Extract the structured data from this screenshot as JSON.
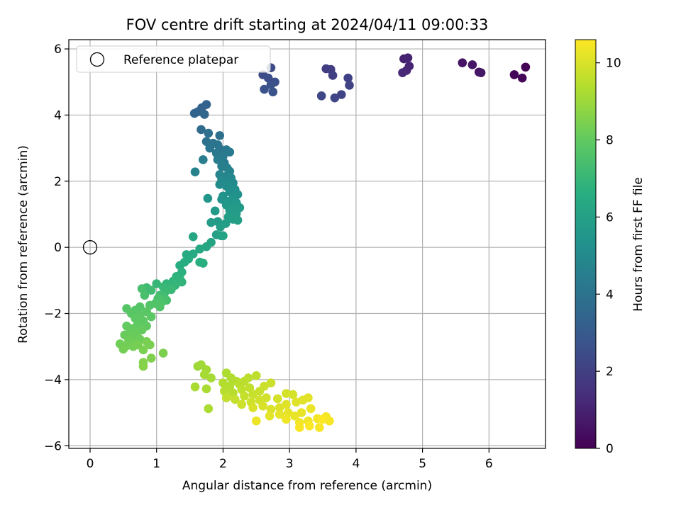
{
  "chart_data": {
    "type": "scatter",
    "title": "FOV centre drift starting at 2024/04/11 09:00:33",
    "xlabel": "Angular distance from reference (arcmin)",
    "ylabel": "Rotation from reference (arcmin)",
    "xlim": [
      -0.32,
      6.85
    ],
    "ylim": [
      -6.08,
      6.28
    ],
    "xticks": [
      0,
      1,
      2,
      3,
      4,
      5,
      6
    ],
    "yticks": [
      -6,
      -4,
      -2,
      0,
      2,
      4,
      6
    ],
    "grid": true,
    "legend": {
      "placement": "top-left",
      "entries": [
        "Reference platepar"
      ]
    },
    "reference_point": {
      "x": 0,
      "y": 0
    },
    "colorbar": {
      "label": "Hours from first FF file",
      "colormap": "viridis",
      "range": [
        0,
        10.6
      ],
      "ticks": [
        0,
        2,
        4,
        6,
        8,
        10
      ]
    },
    "points": [
      {
        "x": 6.55,
        "y": 5.45,
        "c": 0.05
      },
      {
        "x": 6.38,
        "y": 5.22,
        "c": 0.1
      },
      {
        "x": 6.5,
        "y": 5.12,
        "c": 0.15
      },
      {
        "x": 5.85,
        "y": 5.3,
        "c": 0.5
      },
      {
        "x": 5.6,
        "y": 5.58,
        "c": 0.55
      },
      {
        "x": 5.75,
        "y": 5.52,
        "c": 0.6
      },
      {
        "x": 5.88,
        "y": 5.28,
        "c": 0.65
      },
      {
        "x": 4.72,
        "y": 5.7,
        "c": 1.0
      },
      {
        "x": 4.78,
        "y": 5.73,
        "c": 1.05
      },
      {
        "x": 4.8,
        "y": 5.48,
        "c": 1.1
      },
      {
        "x": 4.76,
        "y": 5.35,
        "c": 1.15
      },
      {
        "x": 4.7,
        "y": 5.28,
        "c": 1.2
      },
      {
        "x": 3.55,
        "y": 5.4,
        "c": 1.9
      },
      {
        "x": 3.62,
        "y": 5.38,
        "c": 1.95
      },
      {
        "x": 3.65,
        "y": 5.2,
        "c": 2.0
      },
      {
        "x": 3.88,
        "y": 5.12,
        "c": 2.05
      },
      {
        "x": 3.9,
        "y": 4.9,
        "c": 2.1
      },
      {
        "x": 3.78,
        "y": 4.62,
        "c": 2.15
      },
      {
        "x": 3.68,
        "y": 4.52,
        "c": 2.2
      },
      {
        "x": 3.48,
        "y": 4.58,
        "c": 2.25
      },
      {
        "x": 2.72,
        "y": 5.43,
        "c": 2.4
      },
      {
        "x": 2.6,
        "y": 5.22,
        "c": 2.45
      },
      {
        "x": 2.68,
        "y": 5.12,
        "c": 2.5
      },
      {
        "x": 2.78,
        "y": 5.0,
        "c": 2.55
      },
      {
        "x": 2.72,
        "y": 4.92,
        "c": 2.6
      },
      {
        "x": 2.62,
        "y": 4.78,
        "c": 2.65
      },
      {
        "x": 2.75,
        "y": 4.7,
        "c": 2.7
      },
      {
        "x": 1.75,
        "y": 4.32,
        "c": 3.3
      },
      {
        "x": 1.68,
        "y": 4.22,
        "c": 3.35
      },
      {
        "x": 1.62,
        "y": 4.1,
        "c": 3.4
      },
      {
        "x": 1.57,
        "y": 4.05,
        "c": 3.45
      },
      {
        "x": 1.72,
        "y": 4.02,
        "c": 3.5
      },
      {
        "x": 1.67,
        "y": 3.56,
        "c": 3.7
      },
      {
        "x": 1.78,
        "y": 3.45,
        "c": 3.8
      },
      {
        "x": 1.95,
        "y": 3.38,
        "c": 3.9
      },
      {
        "x": 1.75,
        "y": 3.2,
        "c": 3.95
      },
      {
        "x": 1.85,
        "y": 3.15,
        "c": 4.0
      },
      {
        "x": 1.92,
        "y": 3.1,
        "c": 4.05
      },
      {
        "x": 1.8,
        "y": 3.0,
        "c": 4.1
      },
      {
        "x": 1.95,
        "y": 2.98,
        "c": 4.15
      },
      {
        "x": 2.05,
        "y": 2.95,
        "c": 4.2
      },
      {
        "x": 1.9,
        "y": 2.85,
        "c": 4.25
      },
      {
        "x": 2.1,
        "y": 2.88,
        "c": 4.3
      },
      {
        "x": 2.0,
        "y": 2.75,
        "c": 4.35
      },
      {
        "x": 1.92,
        "y": 2.65,
        "c": 4.4
      },
      {
        "x": 2.02,
        "y": 2.55,
        "c": 4.45
      },
      {
        "x": 1.7,
        "y": 2.65,
        "c": 4.5
      },
      {
        "x": 1.98,
        "y": 2.45,
        "c": 4.55
      },
      {
        "x": 2.06,
        "y": 2.4,
        "c": 4.6
      },
      {
        "x": 1.58,
        "y": 2.28,
        "c": 4.65
      },
      {
        "x": 2.1,
        "y": 2.3,
        "c": 4.7
      },
      {
        "x": 1.95,
        "y": 2.2,
        "c": 4.75
      },
      {
        "x": 2.05,
        "y": 2.15,
        "c": 4.8
      },
      {
        "x": 2.12,
        "y": 2.1,
        "c": 4.85
      },
      {
        "x": 1.98,
        "y": 2.05,
        "c": 4.9
      },
      {
        "x": 2.08,
        "y": 2.0,
        "c": 4.95
      },
      {
        "x": 2.15,
        "y": 1.95,
        "c": 5.0
      },
      {
        "x": 1.95,
        "y": 1.9,
        "c": 5.05
      },
      {
        "x": 2.05,
        "y": 1.85,
        "c": 5.1
      },
      {
        "x": 2.12,
        "y": 1.8,
        "c": 5.15
      },
      {
        "x": 2.18,
        "y": 1.75,
        "c": 5.2
      },
      {
        "x": 2.1,
        "y": 1.68,
        "c": 5.25
      },
      {
        "x": 2.22,
        "y": 1.6,
        "c": 5.3
      },
      {
        "x": 2.0,
        "y": 1.55,
        "c": 5.35
      },
      {
        "x": 2.15,
        "y": 1.48,
        "c": 5.4
      },
      {
        "x": 1.98,
        "y": 1.45,
        "c": 5.45
      },
      {
        "x": 2.1,
        "y": 1.4,
        "c": 5.5
      },
      {
        "x": 2.2,
        "y": 1.35,
        "c": 5.55
      },
      {
        "x": 2.05,
        "y": 1.28,
        "c": 5.6
      },
      {
        "x": 2.16,
        "y": 1.22,
        "c": 5.65
      },
      {
        "x": 2.25,
        "y": 1.2,
        "c": 5.7
      },
      {
        "x": 2.1,
        "y": 1.12,
        "c": 5.75
      },
      {
        "x": 2.2,
        "y": 1.02,
        "c": 5.8
      },
      {
        "x": 2.08,
        "y": 0.92,
        "c": 5.85
      },
      {
        "x": 2.15,
        "y": 0.85,
        "c": 5.9
      },
      {
        "x": 2.22,
        "y": 0.82,
        "c": 5.95
      },
      {
        "x": 1.77,
        "y": 1.48,
        "c": 5.55
      },
      {
        "x": 1.88,
        "y": 1.1,
        "c": 5.7
      },
      {
        "x": 1.92,
        "y": 0.78,
        "c": 5.75
      },
      {
        "x": 1.82,
        "y": 0.75,
        "c": 5.8
      },
      {
        "x": 1.96,
        "y": 0.62,
        "c": 5.85
      },
      {
        "x": 2.04,
        "y": 0.72,
        "c": 5.9
      },
      {
        "x": 1.9,
        "y": 0.38,
        "c": 6.0
      },
      {
        "x": 1.97,
        "y": 0.35,
        "c": 6.05
      },
      {
        "x": 2.0,
        "y": 0.35,
        "c": 6.1
      },
      {
        "x": 1.82,
        "y": 0.15,
        "c": 6.15
      },
      {
        "x": 1.75,
        "y": 0.02,
        "c": 6.2
      },
      {
        "x": 1.55,
        "y": 0.32,
        "c": 6.25
      },
      {
        "x": 1.65,
        "y": -0.05,
        "c": 6.3
      },
      {
        "x": 1.55,
        "y": -0.2,
        "c": 6.4
      },
      {
        "x": 1.45,
        "y": -0.22,
        "c": 6.45
      },
      {
        "x": 1.48,
        "y": -0.35,
        "c": 6.5
      },
      {
        "x": 1.42,
        "y": -0.45,
        "c": 6.55
      },
      {
        "x": 1.35,
        "y": -0.55,
        "c": 6.6
      },
      {
        "x": 1.65,
        "y": -0.45,
        "c": 6.62
      },
      {
        "x": 1.7,
        "y": -0.48,
        "c": 6.65
      },
      {
        "x": 1.38,
        "y": -0.75,
        "c": 6.7
      },
      {
        "x": 1.3,
        "y": -0.88,
        "c": 6.75
      },
      {
        "x": 1.35,
        "y": -0.95,
        "c": 6.8
      },
      {
        "x": 1.25,
        "y": -1.02,
        "c": 6.85
      },
      {
        "x": 1.38,
        "y": -1.05,
        "c": 6.88
      },
      {
        "x": 1.15,
        "y": -1.1,
        "c": 6.9
      },
      {
        "x": 1.28,
        "y": -1.15,
        "c": 6.95
      },
      {
        "x": 1.0,
        "y": -1.1,
        "c": 7.0
      },
      {
        "x": 1.1,
        "y": -1.2,
        "c": 7.05
      },
      {
        "x": 1.22,
        "y": -1.28,
        "c": 7.1
      },
      {
        "x": 1.12,
        "y": -1.38,
        "c": 7.15
      },
      {
        "x": 0.85,
        "y": -1.22,
        "c": 7.2
      },
      {
        "x": 0.92,
        "y": -1.3,
        "c": 7.25
      },
      {
        "x": 1.05,
        "y": -1.45,
        "c": 7.3
      },
      {
        "x": 1.1,
        "y": -1.5,
        "c": 7.35
      },
      {
        "x": 1.15,
        "y": -1.6,
        "c": 7.4
      },
      {
        "x": 0.78,
        "y": -1.25,
        "c": 7.42
      },
      {
        "x": 0.82,
        "y": -1.45,
        "c": 7.45
      },
      {
        "x": 1.02,
        "y": -1.55,
        "c": 7.5
      },
      {
        "x": 1.08,
        "y": -1.65,
        "c": 7.55
      },
      {
        "x": 0.98,
        "y": -1.7,
        "c": 7.6
      },
      {
        "x": 1.05,
        "y": -1.8,
        "c": 7.65
      },
      {
        "x": 0.9,
        "y": -1.75,
        "c": 7.7
      },
      {
        "x": 0.75,
        "y": -1.8,
        "c": 7.72
      },
      {
        "x": 0.55,
        "y": -1.85,
        "c": 7.75
      },
      {
        "x": 0.68,
        "y": -1.9,
        "c": 7.78
      },
      {
        "x": 0.85,
        "y": -1.95,
        "c": 7.8
      },
      {
        "x": 0.62,
        "y": -2.0,
        "c": 7.82
      },
      {
        "x": 0.75,
        "y": -2.05,
        "c": 7.85
      },
      {
        "x": 0.92,
        "y": -2.1,
        "c": 7.88
      },
      {
        "x": 0.68,
        "y": -2.15,
        "c": 7.9
      },
      {
        "x": 0.8,
        "y": -2.22,
        "c": 7.92
      },
      {
        "x": 0.72,
        "y": -2.3,
        "c": 7.95
      },
      {
        "x": 0.85,
        "y": -2.38,
        "c": 7.98
      },
      {
        "x": 0.55,
        "y": -2.38,
        "c": 8.0
      },
      {
        "x": 0.65,
        "y": -2.45,
        "c": 8.02
      },
      {
        "x": 0.78,
        "y": -2.5,
        "c": 8.05
      },
      {
        "x": 0.6,
        "y": -2.58,
        "c": 8.08
      },
      {
        "x": 0.7,
        "y": -2.62,
        "c": 8.1
      },
      {
        "x": 0.52,
        "y": -2.65,
        "c": 8.12
      },
      {
        "x": 0.62,
        "y": -2.72,
        "c": 8.15
      },
      {
        "x": 0.75,
        "y": -2.78,
        "c": 8.18
      },
      {
        "x": 0.58,
        "y": -2.82,
        "c": 8.2
      },
      {
        "x": 0.68,
        "y": -2.88,
        "c": 8.22
      },
      {
        "x": 0.45,
        "y": -2.92,
        "c": 8.25
      },
      {
        "x": 0.55,
        "y": -2.98,
        "c": 8.28
      },
      {
        "x": 0.65,
        "y": -3.0,
        "c": 8.3
      },
      {
        "x": 0.5,
        "y": -3.08,
        "c": 8.32
      },
      {
        "x": 0.72,
        "y": -2.95,
        "c": 8.35
      },
      {
        "x": 0.85,
        "y": -2.85,
        "c": 8.38
      },
      {
        "x": 0.9,
        "y": -2.95,
        "c": 8.4
      },
      {
        "x": 0.8,
        "y": -3.1,
        "c": 8.42
      },
      {
        "x": 1.1,
        "y": -3.2,
        "c": 8.45
      },
      {
        "x": 0.92,
        "y": -3.35,
        "c": 8.5
      },
      {
        "x": 0.8,
        "y": -3.48,
        "c": 8.55
      },
      {
        "x": 0.8,
        "y": -3.6,
        "c": 8.6
      },
      {
        "x": 1.62,
        "y": -3.6,
        "c": 9.0
      },
      {
        "x": 1.67,
        "y": -3.55,
        "c": 9.05
      },
      {
        "x": 1.75,
        "y": -3.7,
        "c": 9.1
      },
      {
        "x": 1.82,
        "y": -3.95,
        "c": 9.15
      },
      {
        "x": 1.72,
        "y": -3.85,
        "c": 9.18
      },
      {
        "x": 1.58,
        "y": -4.22,
        "c": 9.2
      },
      {
        "x": 1.75,
        "y": -4.28,
        "c": 9.22
      },
      {
        "x": 1.78,
        "y": -4.88,
        "c": 9.25
      },
      {
        "x": 2.05,
        "y": -3.8,
        "c": 9.3
      },
      {
        "x": 2.12,
        "y": -3.95,
        "c": 9.32
      },
      {
        "x": 2.0,
        "y": -4.1,
        "c": 9.35
      },
      {
        "x": 2.1,
        "y": -4.2,
        "c": 9.38
      },
      {
        "x": 2.2,
        "y": -4.05,
        "c": 9.4
      },
      {
        "x": 2.02,
        "y": -4.35,
        "c": 9.42
      },
      {
        "x": 2.15,
        "y": -4.4,
        "c": 9.45
      },
      {
        "x": 2.25,
        "y": -4.15,
        "c": 9.48
      },
      {
        "x": 2.32,
        "y": -4.05,
        "c": 9.5
      },
      {
        "x": 2.38,
        "y": -3.95,
        "c": 9.52
      },
      {
        "x": 2.5,
        "y": -3.88,
        "c": 9.55
      },
      {
        "x": 2.28,
        "y": -4.3,
        "c": 9.58
      },
      {
        "x": 2.4,
        "y": -4.25,
        "c": 9.6
      },
      {
        "x": 2.05,
        "y": -4.55,
        "c": 9.62
      },
      {
        "x": 2.18,
        "y": -4.6,
        "c": 9.65
      },
      {
        "x": 2.32,
        "y": -4.5,
        "c": 9.68
      },
      {
        "x": 2.45,
        "y": -4.45,
        "c": 9.7
      },
      {
        "x": 2.55,
        "y": -4.35,
        "c": 9.72
      },
      {
        "x": 2.62,
        "y": -4.2,
        "c": 9.75
      },
      {
        "x": 2.72,
        "y": -4.1,
        "c": 9.78
      },
      {
        "x": 2.28,
        "y": -4.75,
        "c": 9.8
      },
      {
        "x": 2.42,
        "y": -4.68,
        "c": 9.82
      },
      {
        "x": 2.55,
        "y": -4.62,
        "c": 9.85
      },
      {
        "x": 2.65,
        "y": -4.55,
        "c": 9.88
      },
      {
        "x": 2.82,
        "y": -4.58,
        "c": 9.9
      },
      {
        "x": 2.95,
        "y": -4.42,
        "c": 9.92
      },
      {
        "x": 3.05,
        "y": -4.45,
        "c": 9.95
      },
      {
        "x": 2.45,
        "y": -4.85,
        "c": 9.98
      },
      {
        "x": 2.6,
        "y": -4.8,
        "c": 10.0
      },
      {
        "x": 2.72,
        "y": -4.9,
        "c": 10.02
      },
      {
        "x": 2.85,
        "y": -4.85,
        "c": 10.05
      },
      {
        "x": 2.95,
        "y": -4.75,
        "c": 10.08
      },
      {
        "x": 3.1,
        "y": -4.68,
        "c": 10.1
      },
      {
        "x": 3.2,
        "y": -4.62,
        "c": 10.12
      },
      {
        "x": 3.28,
        "y": -4.55,
        "c": 10.15
      },
      {
        "x": 2.7,
        "y": -5.1,
        "c": 10.18
      },
      {
        "x": 2.85,
        "y": -5.05,
        "c": 10.2
      },
      {
        "x": 2.98,
        "y": -5.0,
        "c": 10.22
      },
      {
        "x": 3.08,
        "y": -5.1,
        "c": 10.25
      },
      {
        "x": 3.18,
        "y": -5.0,
        "c": 10.28
      },
      {
        "x": 3.32,
        "y": -4.88,
        "c": 10.3
      },
      {
        "x": 2.5,
        "y": -5.25,
        "c": 10.32
      },
      {
        "x": 2.95,
        "y": -5.2,
        "c": 10.35
      },
      {
        "x": 3.15,
        "y": -5.3,
        "c": 10.38
      },
      {
        "x": 3.28,
        "y": -5.25,
        "c": 10.4
      },
      {
        "x": 3.42,
        "y": -5.18,
        "c": 10.42
      },
      {
        "x": 3.55,
        "y": -5.12,
        "c": 10.45
      },
      {
        "x": 3.6,
        "y": -5.25,
        "c": 10.48
      },
      {
        "x": 3.45,
        "y": -5.45,
        "c": 10.5
      },
      {
        "x": 3.15,
        "y": -5.45,
        "c": 10.52
      },
      {
        "x": 3.3,
        "y": -5.4,
        "c": 10.55
      },
      {
        "x": 3.5,
        "y": -5.2,
        "c": 10.58
      }
    ]
  }
}
